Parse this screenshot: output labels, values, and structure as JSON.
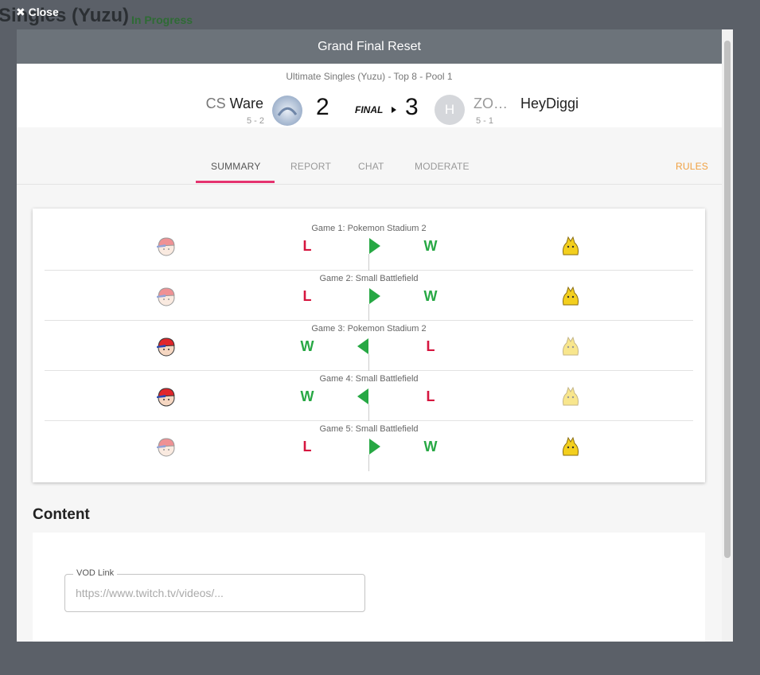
{
  "background": {
    "title": "Singles (Yuzu)",
    "status": "In Progress",
    "close": "Close"
  },
  "modal": {
    "title": "Grand Final Reset",
    "subtitle": "Ultimate Singles (Yuzu) - Top 8 - Pool 1",
    "match": {
      "player1": {
        "prefix": "CS",
        "name": "Ware",
        "record": "5 - 2",
        "score": 2
      },
      "round": "FINAL",
      "player2": {
        "prefix": "ZO…",
        "name": "HeyDiggi",
        "record": "5 - 1",
        "score": 3,
        "avatar": "H"
      }
    },
    "tabs": [
      "SUMMARY",
      "REPORT",
      "CHAT",
      "MODERATE"
    ],
    "rules": "RULES",
    "games": [
      {
        "label": "Game 1: Pokemon Stadium 2",
        "left": "L",
        "right": "W"
      },
      {
        "label": "Game 2: Small Battlefield",
        "left": "L",
        "right": "W"
      },
      {
        "label": "Game 3: Pokemon Stadium 2",
        "left": "W",
        "right": "L"
      },
      {
        "label": "Game 4: Small Battlefield",
        "left": "W",
        "right": "L"
      },
      {
        "label": "Game 5: Small Battlefield",
        "left": "L",
        "right": "W"
      }
    ],
    "content": {
      "heading": "Content",
      "vod_label": "VOD Link",
      "vod_placeholder": "https://www.twitch.tv/videos/..."
    }
  }
}
